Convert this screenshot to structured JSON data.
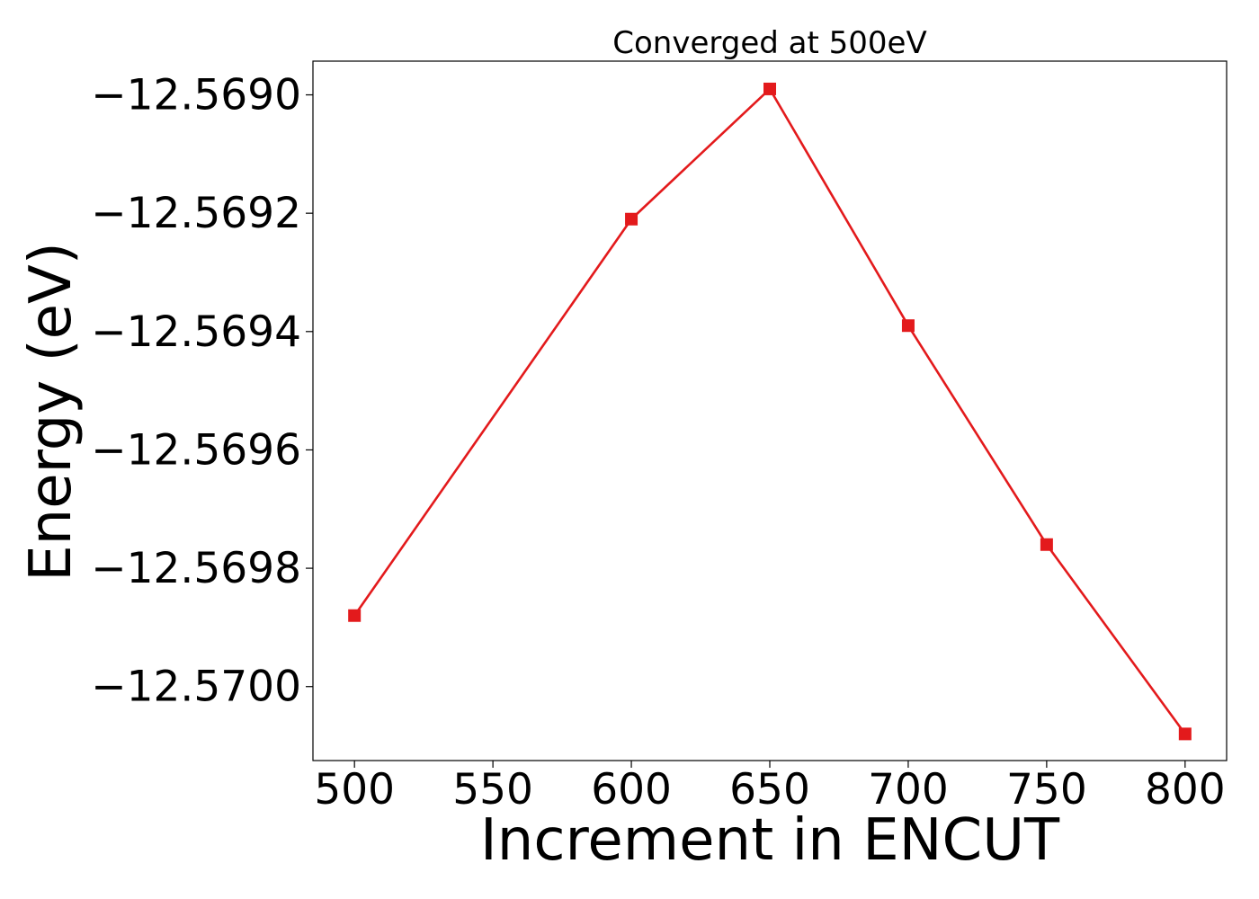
{
  "chart_data": {
    "type": "line",
    "title": "Converged at 500eV",
    "xlabel": "Increment in ENCUT",
    "ylabel": "Energy (eV)",
    "x": [
      500,
      600,
      650,
      700,
      750,
      800
    ],
    "series": [
      {
        "values": [
          -12.56988,
          -12.56921,
          -12.56899,
          -12.56939,
          -12.56976,
          -12.57008
        ],
        "color": "#e31a1c",
        "marker": "square"
      }
    ],
    "xticks": [
      500,
      550,
      600,
      650,
      700,
      750,
      800
    ],
    "xtick_labels": [
      "500",
      "550",
      "600",
      "650",
      "700",
      "750",
      "800"
    ],
    "yticks": [
      -12.569,
      -12.5692,
      -12.5694,
      -12.5696,
      -12.5698,
      -12.57
    ],
    "ytick_labels": [
      "−12.5690",
      "−12.5692",
      "−12.5694",
      "−12.5696",
      "−12.5698",
      "−12.5700"
    ],
    "xlim": [
      485,
      815
    ],
    "ylim": [
      -12.570125,
      -12.568943
    ],
    "grid": false,
    "legend": "none"
  }
}
